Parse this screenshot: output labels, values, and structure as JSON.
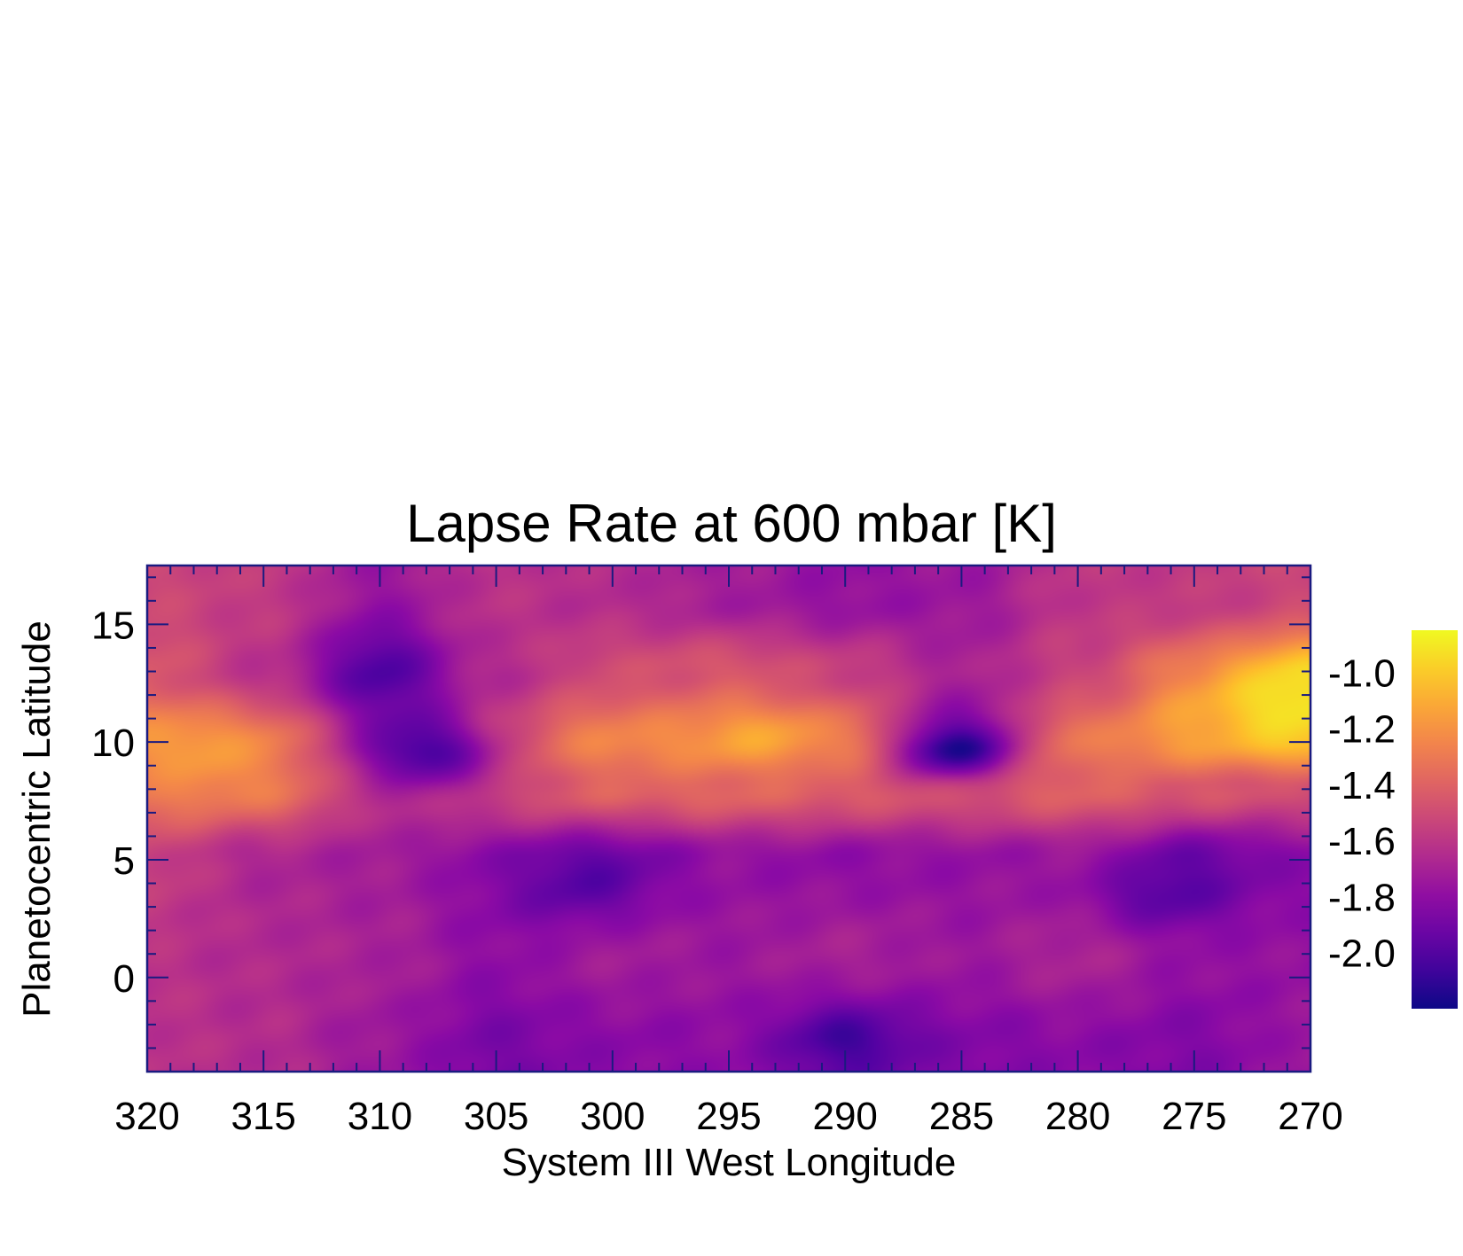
{
  "chart_data": {
    "type": "heatmap",
    "title": "Lapse Rate at 600 mbar [K]",
    "xlabel": "System III West Longitude",
    "ylabel": "Planetocentric Latitude",
    "xlim": [
      320,
      270
    ],
    "ylim": [
      -4,
      17.5
    ],
    "x_ticks": [
      320,
      315,
      310,
      305,
      300,
      295,
      290,
      285,
      280,
      275,
      270
    ],
    "x_tick_labels": [
      "320",
      "315",
      "310",
      "305",
      "300",
      "295",
      "290",
      "285",
      "280",
      "275",
      "270"
    ],
    "y_ticks": [
      0,
      5,
      10,
      15
    ],
    "y_tick_labels": [
      "0",
      "5",
      "10",
      "15"
    ],
    "colormap": "plasma",
    "colorbar": {
      "range": [
        -2.2,
        -0.85
      ],
      "ticks": [
        -1.0,
        -1.2,
        -1.4,
        -1.6,
        -1.8,
        -2.0
      ],
      "tick_labels": [
        "-1.0",
        "-1.2",
        "-1.4",
        "-1.6",
        "-1.8",
        "-2.0"
      ]
    },
    "axis_color": "#1a1a80",
    "latitudes": [
      -3,
      1,
      5,
      8,
      10,
      13,
      16
    ],
    "longitudes": [
      320,
      315,
      310,
      305,
      300,
      295,
      290,
      285,
      280,
      275,
      270
    ],
    "values": [
      [
        -1.62,
        -1.65,
        -1.75,
        -1.88,
        -1.82,
        -1.8,
        -1.92,
        -1.85,
        -1.82,
        -1.85,
        -1.75
      ],
      [
        -1.62,
        -1.66,
        -1.7,
        -1.8,
        -1.72,
        -1.75,
        -1.7,
        -1.75,
        -1.68,
        -1.78,
        -1.78
      ],
      [
        -1.55,
        -1.68,
        -1.72,
        -1.82,
        -1.88,
        -1.78,
        -1.8,
        -1.78,
        -1.75,
        -1.92,
        -1.82
      ],
      [
        -1.3,
        -1.32,
        -1.6,
        -1.5,
        -1.4,
        -1.38,
        -1.42,
        -1.45,
        -1.4,
        -1.45,
        -1.5
      ],
      [
        -1.22,
        -1.32,
        -1.68,
        -1.45,
        -1.25,
        -1.22,
        -1.32,
        -1.85,
        -1.32,
        -1.2,
        -1.05
      ],
      [
        -1.45,
        -1.62,
        -1.82,
        -1.65,
        -1.5,
        -1.45,
        -1.55,
        -1.7,
        -1.55,
        -1.35,
        -1.08
      ],
      [
        -1.52,
        -1.58,
        -1.75,
        -1.62,
        -1.65,
        -1.72,
        -1.78,
        -1.75,
        -1.6,
        -1.58,
        -1.52
      ]
    ],
    "blobs": [
      {
        "lon": 307.5,
        "lat": 9.6,
        "amp": -0.45,
        "sx": 2.0,
        "sy": 1.2
      },
      {
        "lon": 285.5,
        "lat": 9.4,
        "amp": -0.35,
        "sx": 1.8,
        "sy": 0.9
      },
      {
        "lon": 310.0,
        "lat": 13.0,
        "amp": -0.2,
        "sx": 2.0,
        "sy": 1.5
      },
      {
        "lon": 272.5,
        "lat": 12.0,
        "amp": 0.22,
        "sx": 3.0,
        "sy": 1.3
      },
      {
        "lon": 317.0,
        "lat": 9.5,
        "amp": 0.12,
        "sx": 1.8,
        "sy": 1.3
      },
      {
        "lon": 293.0,
        "lat": 10.4,
        "amp": 0.12,
        "sx": 2.0,
        "sy": 1.0
      },
      {
        "lon": 301.5,
        "lat": 3.8,
        "amp": -0.15,
        "sx": 2.0,
        "sy": 1.2
      },
      {
        "lon": 277.0,
        "lat": 3.4,
        "amp": -0.15,
        "sx": 2.2,
        "sy": 1.0
      },
      {
        "lon": 290.0,
        "lat": -2.5,
        "amp": -0.15,
        "sx": 2.0,
        "sy": 1.0
      }
    ]
  }
}
